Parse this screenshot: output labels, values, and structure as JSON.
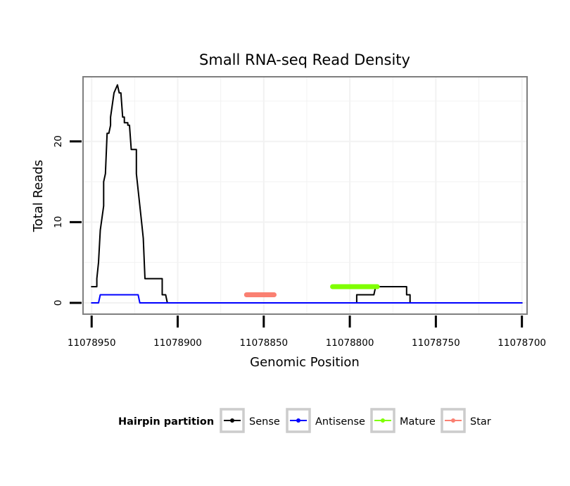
{
  "chart_data": {
    "type": "line",
    "title": "Small RNA-seq Read Density",
    "xlabel": "Genomic Position",
    "ylabel": "Total Reads",
    "xlim": [
      11078955,
      11078697
    ],
    "ylim": [
      -1.4,
      28
    ],
    "x_reversed": true,
    "x_ticks": [
      11078950,
      11078900,
      11078850,
      11078800,
      11078750,
      11078700
    ],
    "x_tick_labels": [
      "11078950",
      "11078900",
      "11078850",
      "11078800",
      "11078750",
      "11078700"
    ],
    "y_ticks": [
      0,
      10,
      20
    ],
    "y_tick_labels": [
      "0",
      "10",
      "20"
    ],
    "grid": true,
    "legend": {
      "title": "Hairpin partition",
      "position": "bottom",
      "entries": [
        "Sense",
        "Antisense",
        "Mature",
        "Star"
      ]
    },
    "series": [
      {
        "name": "Sense",
        "color": "#000000",
        "x": [
          11078950,
          11078947,
          11078947,
          11078946,
          11078946,
          11078945,
          11078945,
          11078943,
          11078943,
          11078942,
          11078941,
          11078940,
          11078939,
          11078939,
          11078937,
          11078937,
          11078935,
          11078934,
          11078933,
          11078932,
          11078931,
          11078931,
          11078929,
          11078929,
          11078928,
          11078927,
          11078927,
          11078924,
          11078924,
          11078921,
          11078920,
          11078919,
          11078918,
          11078916,
          11078916,
          11078909,
          11078909,
          11078907,
          11078906,
          11078796,
          11078796,
          11078786,
          11078785,
          11078783,
          11078782,
          11078767,
          11078767,
          11078765,
          11078765,
          11078700
        ],
        "y": [
          2,
          2,
          3,
          5,
          5,
          9,
          9,
          12,
          15,
          16,
          21,
          21,
          22,
          23,
          26,
          26,
          27,
          26,
          26,
          23,
          23,
          22.3,
          22.3,
          22,
          22,
          19,
          19,
          19,
          16,
          10,
          8,
          3,
          3,
          3,
          3,
          3,
          1,
          1,
          0,
          0,
          1,
          1,
          2,
          2,
          2,
          2,
          1,
          1,
          0,
          0
        ]
      },
      {
        "name": "Antisense",
        "color": "#0000ff",
        "x": [
          11078950,
          11078946,
          11078945,
          11078945,
          11078923,
          11078922,
          11078922,
          11078700
        ],
        "y": [
          0,
          0,
          1,
          1,
          1,
          0,
          0,
          0
        ]
      },
      {
        "name": "Mature",
        "color": "#7fff00",
        "x": [
          11078810,
          11078784
        ],
        "y": [
          2,
          2
        ]
      },
      {
        "name": "Star",
        "color": "#fa8072",
        "x": [
          11078860,
          11078844
        ],
        "y": [
          1,
          1
        ]
      }
    ]
  }
}
